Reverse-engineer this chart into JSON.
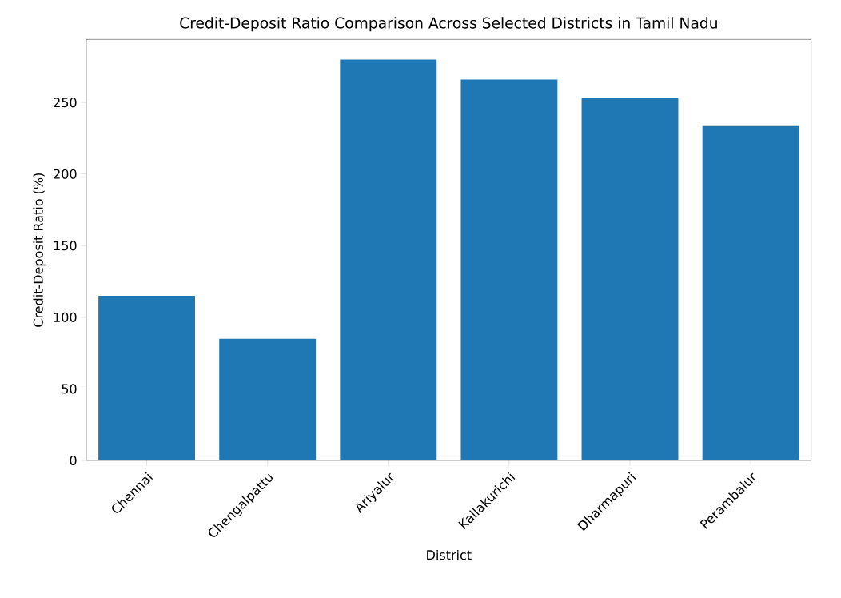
{
  "chart_data": {
    "type": "bar",
    "title": "Credit-Deposit Ratio Comparison Across Selected Districts in Tamil Nadu",
    "xlabel": "District",
    "ylabel": "Credit-Deposit Ratio (%)",
    "categories": [
      "Chennai",
      "Chengalpattu",
      "Ariyalur",
      "Kallakurichi",
      "Dharmapuri",
      "Perambalur"
    ],
    "values": [
      115,
      85,
      280,
      266,
      253,
      234
    ],
    "color": "#1f77b4",
    "ylim": [
      0,
      294
    ],
    "yticks": [
      0,
      50,
      100,
      150,
      200,
      250
    ],
    "grid": false
  }
}
